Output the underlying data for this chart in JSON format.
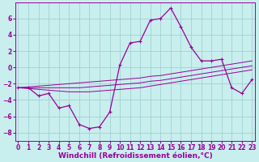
{
  "bg_color": "#c8eeee",
  "grid_color": "#99cccc",
  "line_color": "#990099",
  "xlim": [
    -0.3,
    23.3
  ],
  "ylim": [
    -9.0,
    8.0
  ],
  "yticks": [
    -8,
    -6,
    -4,
    -2,
    0,
    2,
    4,
    6
  ],
  "xticks": [
    0,
    1,
    2,
    3,
    4,
    5,
    6,
    7,
    8,
    9,
    10,
    11,
    12,
    13,
    14,
    15,
    16,
    17,
    18,
    19,
    20,
    21,
    22,
    23
  ],
  "main_y": [
    -2.5,
    -2.5,
    -3.5,
    -3.2,
    -5.0,
    -4.7,
    -7.0,
    -7.5,
    -7.3,
    -5.5,
    0.3,
    3.0,
    3.2,
    5.8,
    6.0,
    7.3,
    5.0,
    2.5,
    0.8,
    0.8,
    1.0,
    -2.5,
    -3.2,
    -1.5
  ],
  "line_upper_y": [
    -2.5,
    -2.4,
    -2.3,
    -2.2,
    -2.1,
    -2.0,
    -1.9,
    -1.8,
    -1.7,
    -1.6,
    -1.5,
    -1.4,
    -1.3,
    -1.1,
    -1.0,
    -0.8,
    -0.6,
    -0.4,
    -0.2,
    0.0,
    0.2,
    0.4,
    0.6,
    0.8
  ],
  "line_lower_y": [
    -2.5,
    -2.6,
    -2.7,
    -2.8,
    -2.9,
    -3.0,
    -3.0,
    -3.0,
    -2.9,
    -2.8,
    -2.7,
    -2.6,
    -2.5,
    -2.3,
    -2.1,
    -1.9,
    -1.7,
    -1.5,
    -1.3,
    -1.1,
    -0.9,
    -0.7,
    -0.5,
    -0.3
  ],
  "line_mid_y": [
    -2.5,
    -2.5,
    -2.5,
    -2.5,
    -2.5,
    -2.5,
    -2.5,
    -2.4,
    -2.3,
    -2.2,
    -2.1,
    -2.0,
    -1.9,
    -1.7,
    -1.6,
    -1.4,
    -1.2,
    -1.0,
    -0.8,
    -0.6,
    -0.4,
    -0.2,
    0.0,
    0.2
  ],
  "xlabel": "Windchill (Refroidissement éolien,°C)",
  "tick_fontsize": 5.5,
  "xlabel_fontsize": 6.5
}
